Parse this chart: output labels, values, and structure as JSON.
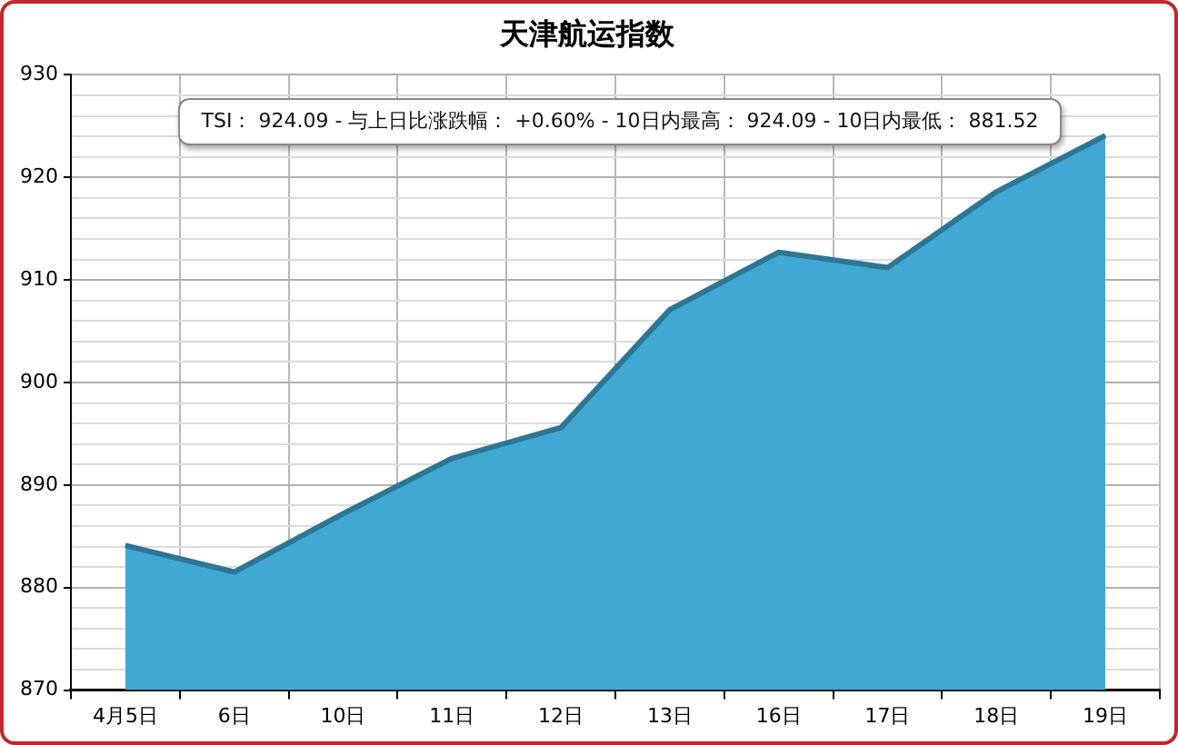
{
  "chart_data": {
    "type": "area",
    "title": "天津航运指数",
    "categories": [
      "4月5日",
      "6日",
      "10日",
      "11日",
      "12日",
      "13日",
      "16日",
      "17日",
      "18日",
      "19日"
    ],
    "series": [
      {
        "color": "#41a8d4",
        "values": [
          884.1,
          881.52,
          887.2,
          892.6,
          895.6,
          907.1,
          912.7,
          911.2,
          918.6,
          924.09
        ]
      }
    ],
    "ylim": [
      870,
      930
    ],
    "yticks": [
      870,
      {
        "value": 872,
        "label": null
      },
      {
        "value": 874,
        "label": null
      },
      {
        "value": 876,
        "label": null
      },
      {
        "value": 878,
        "label": null
      },
      880,
      {
        "value": 882,
        "label": null
      },
      {
        "value": 884,
        "label": null
      },
      {
        "value": 886,
        "label": null
      },
      {
        "value": 888,
        "label": null
      },
      890,
      {
        "value": 892,
        "label": null
      },
      {
        "value": 894,
        "label": null
      },
      {
        "value": 896,
        "label": null
      },
      {
        "value": 898,
        "label": null
      },
      900,
      {
        "value": 902,
        "label": null
      },
      {
        "value": 904,
        "label": null
      },
      {
        "value": 906,
        "label": null
      },
      {
        "value": 908,
        "label": null
      },
      910,
      {
        "value": 912,
        "label": null
      },
      {
        "value": 914,
        "label": null
      },
      {
        "value": 916,
        "label": null
      },
      {
        "value": 918,
        "label": null
      },
      920,
      {
        "value": 922,
        "label": null
      },
      {
        "value": 924,
        "label": null
      },
      {
        "value": 926,
        "label": null
      },
      {
        "value": 928,
        "label": null
      },
      930
    ],
    "grid": true,
    "legend": false,
    "annotations": [
      "TSI： 924.09  - 与上日比涨跌幅： +0.60%  - 10日内最高： 924.09  - 10日内最低： 881.52"
    ]
  }
}
